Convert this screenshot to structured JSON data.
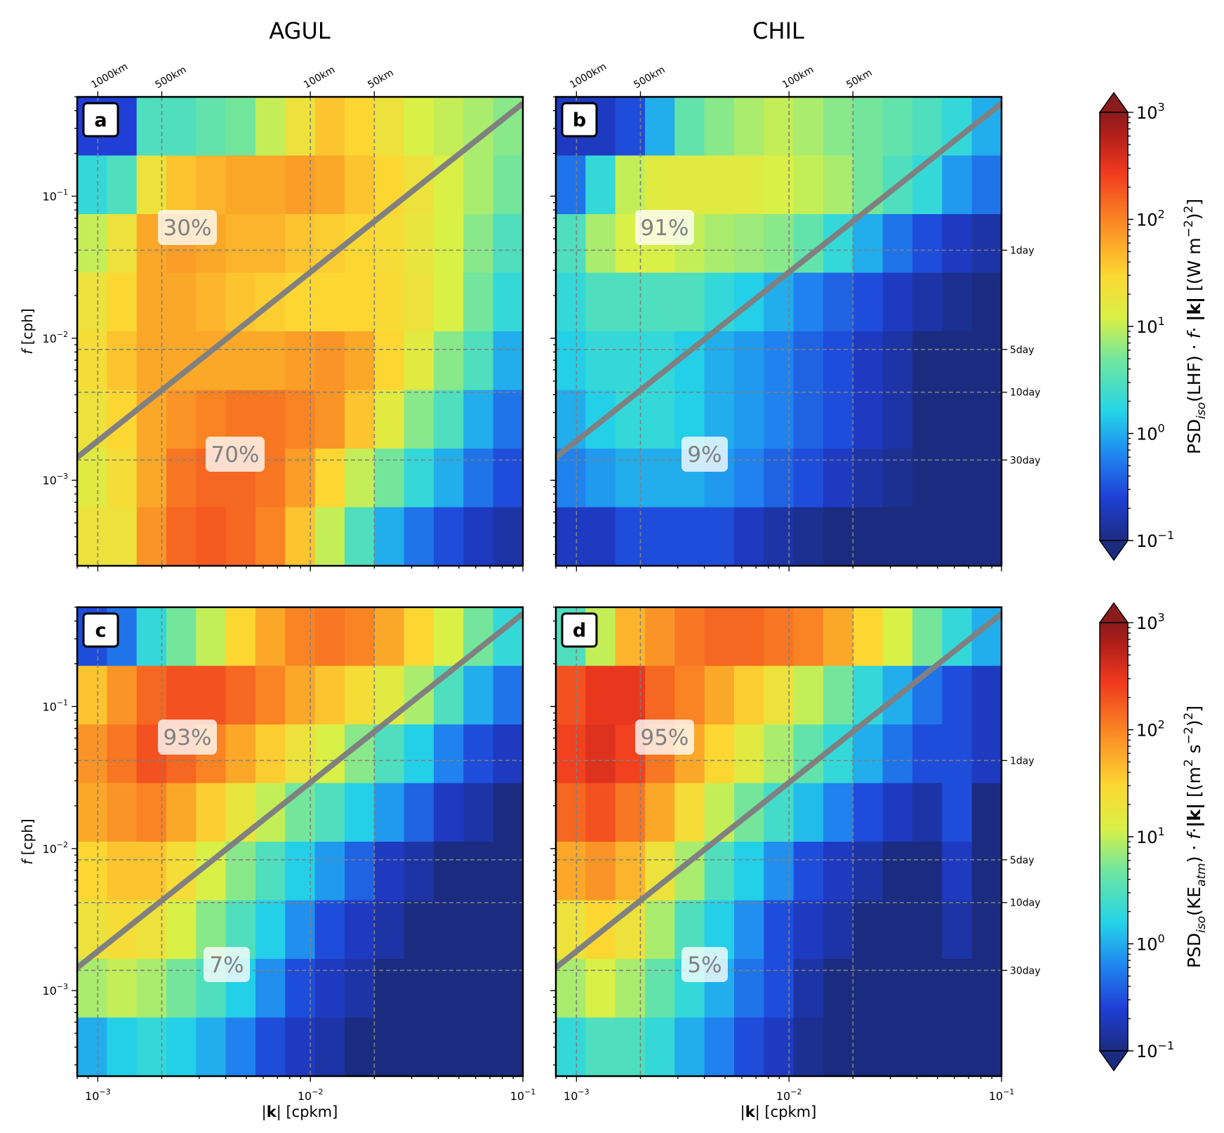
{
  "columns": [
    "AGUL",
    "CHIL"
  ],
  "chart_data": [
    {
      "type": "heatmap",
      "panel": "a",
      "region": "AGUL",
      "field": "LHF",
      "xlabel": "|k| [cpkm]",
      "ylabel": "f [cph]",
      "x_scale": "log",
      "xlim": [
        0.0008,
        0.1
      ],
      "y_scale": "log",
      "ylim": [
        0.00025,
        0.5
      ],
      "percent_above_line": "30%",
      "percent_below_line": "70%",
      "grid": [
        [
          0.25,
          0.25,
          3,
          3,
          4,
          5,
          10,
          20,
          40,
          30,
          20,
          12,
          10,
          8,
          6
        ],
        [
          2,
          3,
          20,
          40,
          50,
          60,
          60,
          70,
          60,
          40,
          30,
          20,
          12,
          8,
          5
        ],
        [
          10,
          20,
          60,
          70,
          60,
          50,
          50,
          40,
          35,
          30,
          25,
          18,
          12,
          6,
          3
        ],
        [
          20,
          30,
          60,
          60,
          50,
          40,
          35,
          30,
          30,
          30,
          28,
          20,
          12,
          5,
          2
        ],
        [
          25,
          40,
          60,
          60,
          60,
          60,
          60,
          70,
          80,
          60,
          30,
          15,
          6,
          3,
          1
        ],
        [
          20,
          30,
          60,
          80,
          100,
          120,
          120,
          100,
          80,
          40,
          15,
          6,
          3,
          1,
          0.5
        ],
        [
          15,
          25,
          60,
          120,
          150,
          150,
          120,
          70,
          30,
          10,
          5,
          2,
          1,
          0.5,
          0.3
        ],
        [
          20,
          20,
          80,
          150,
          180,
          150,
          100,
          40,
          10,
          3,
          1,
          0.5,
          0.3,
          0.2,
          0.15
        ]
      ]
    },
    {
      "type": "heatmap",
      "panel": "b",
      "region": "CHIL",
      "field": "LHF",
      "xlabel": "|k| [cpkm]",
      "ylabel": "f [cph]",
      "x_scale": "log",
      "xlim": [
        0.0008,
        0.1
      ],
      "y_scale": "log",
      "ylim": [
        0.00025,
        0.5
      ],
      "percent_above_line": "91%",
      "percent_below_line": "9%",
      "grid": [
        [
          0.2,
          0.2,
          0.3,
          1,
          4,
          6,
          8,
          10,
          8,
          6,
          5,
          4,
          3,
          2,
          1
        ],
        [
          0.5,
          2,
          10,
          15,
          15,
          15,
          15,
          12,
          10,
          8,
          5,
          3,
          2,
          0.8,
          0.5
        ],
        [
          3,
          8,
          12,
          12,
          10,
          8,
          7,
          6,
          4,
          2,
          1,
          0.5,
          0.3,
          0.2,
          0.15
        ],
        [
          2,
          3,
          3,
          3,
          3,
          2,
          1.5,
          1,
          0.6,
          0.4,
          0.3,
          0.2,
          0.15,
          0.12,
          0.1
        ],
        [
          1.5,
          2,
          2,
          2,
          1.5,
          1,
          0.8,
          0.6,
          0.4,
          0.3,
          0.2,
          0.15,
          0.1,
          0.1,
          0.1
        ],
        [
          1,
          1.5,
          2,
          2,
          1.5,
          1,
          0.8,
          0.6,
          0.4,
          0.3,
          0.2,
          0.15,
          0.1,
          0.1,
          0.1
        ],
        [
          0.6,
          0.8,
          1,
          1,
          1,
          0.8,
          0.6,
          0.4,
          0.3,
          0.2,
          0.15,
          0.12,
          0.1,
          0.1,
          0.1
        ],
        [
          0.2,
          0.2,
          0.3,
          0.3,
          0.3,
          0.3,
          0.2,
          0.15,
          0.12,
          0.1,
          0.1,
          0.1,
          0.1,
          0.1,
          0.1
        ]
      ]
    },
    {
      "type": "heatmap",
      "panel": "c",
      "region": "AGUL",
      "field": "KE_atm",
      "xlabel": "|k| [cpkm]",
      "ylabel": "f [cph]",
      "x_scale": "log",
      "xlim": [
        0.0008,
        0.1
      ],
      "y_scale": "log",
      "ylim": [
        0.00025,
        0.5
      ],
      "percent_above_line": "93%",
      "percent_below_line": "7%",
      "grid": [
        [
          0.3,
          0.5,
          2,
          5,
          10,
          30,
          60,
          100,
          120,
          100,
          60,
          30,
          12,
          5,
          2
        ],
        [
          40,
          80,
          150,
          200,
          200,
          150,
          100,
          60,
          40,
          25,
          15,
          8,
          3,
          1,
          0.5
        ],
        [
          80,
          120,
          200,
          150,
          100,
          60,
          35,
          20,
          12,
          6,
          3,
          1.5,
          0.6,
          0.3,
          0.2
        ],
        [
          60,
          80,
          100,
          60,
          35,
          18,
          10,
          5,
          3,
          1.5,
          0.8,
          0.4,
          0.2,
          0.15,
          0.1
        ],
        [
          30,
          40,
          40,
          25,
          12,
          6,
          3,
          1.5,
          0.8,
          0.4,
          0.2,
          0.15,
          0.1,
          0.1,
          0.1
        ],
        [
          20,
          25,
          20,
          12,
          6,
          3,
          1.5,
          0.7,
          0.3,
          0.2,
          0.15,
          0.1,
          0.1,
          0.1,
          0.1
        ],
        [
          8,
          10,
          8,
          5,
          3,
          1.5,
          0.7,
          0.3,
          0.2,
          0.15,
          0.1,
          0.1,
          0.1,
          0.1,
          0.1
        ],
        [
          1,
          1.5,
          2,
          1.5,
          1,
          0.6,
          0.3,
          0.2,
          0.15,
          0.1,
          0.1,
          0.1,
          0.1,
          0.1,
          0.1
        ]
      ]
    },
    {
      "type": "heatmap",
      "panel": "d",
      "region": "CHIL",
      "field": "KE_atm",
      "xlabel": "|k| [cpkm]",
      "ylabel": "f [cph]",
      "x_scale": "log",
      "xlim": [
        0.0008,
        0.1
      ],
      "y_scale": "log",
      "ylim": [
        0.00025,
        0.5
      ],
      "percent_above_line": "95%",
      "percent_below_line": "5%",
      "grid": [
        [
          3,
          10,
          50,
          80,
          120,
          150,
          150,
          120,
          100,
          60,
          30,
          12,
          5,
          2,
          1
        ],
        [
          200,
          300,
          300,
          150,
          100,
          60,
          35,
          20,
          10,
          5,
          2,
          1,
          0.5,
          0.3,
          0.2
        ],
        [
          250,
          350,
          250,
          120,
          60,
          30,
          15,
          8,
          4,
          2,
          1,
          0.5,
          0.3,
          0.3,
          0.2
        ],
        [
          150,
          200,
          120,
          60,
          25,
          10,
          5,
          2.5,
          1.2,
          0.6,
          0.3,
          0.2,
          0.15,
          0.3,
          0.1
        ],
        [
          60,
          80,
          50,
          20,
          8,
          3,
          1.5,
          0.7,
          0.3,
          0.2,
          0.15,
          0.1,
          0.1,
          0.2,
          0.1
        ],
        [
          20,
          30,
          20,
          8,
          3,
          1.5,
          0.7,
          0.3,
          0.2,
          0.15,
          0.1,
          0.1,
          0.1,
          0.15,
          0.1
        ],
        [
          8,
          12,
          8,
          4,
          2,
          1,
          0.5,
          0.3,
          0.15,
          0.1,
          0.1,
          0.1,
          0.1,
          0.1,
          0.1
        ],
        [
          2,
          3,
          3,
          2,
          1,
          0.6,
          0.3,
          0.2,
          0.12,
          0.1,
          0.1,
          0.1,
          0.1,
          0.1,
          0.1
        ]
      ]
    }
  ],
  "panel_letters": [
    "a",
    "b",
    "c",
    "d"
  ],
  "x_ticks": [
    {
      "value": 0.001,
      "base": "10",
      "exp": "−3"
    },
    {
      "value": 0.01,
      "base": "10",
      "exp": "−2"
    },
    {
      "value": 0.1,
      "base": "10",
      "exp": "−1"
    }
  ],
  "y_ticks": [
    {
      "value": 0.1,
      "base": "10",
      "exp": "−1"
    },
    {
      "value": 0.01,
      "base": "10",
      "exp": "−2"
    },
    {
      "value": 0.001,
      "base": "10",
      "exp": "−3"
    }
  ],
  "wavelength_ticks": [
    {
      "k": 0.001,
      "label": "1000km"
    },
    {
      "k": 0.002,
      "label": "500km"
    },
    {
      "k": 0.01,
      "label": "100km"
    },
    {
      "k": 0.02,
      "label": "50km"
    }
  ],
  "period_ticks": [
    {
      "f": 0.0416667,
      "label": "1day"
    },
    {
      "f": 0.00833333,
      "label": "5day"
    },
    {
      "f": 0.00416667,
      "label": "10day"
    },
    {
      "f": 0.00138889,
      "label": "30day"
    }
  ],
  "xlabel_parts": [
    "|",
    "k",
    "| [cpkm]"
  ],
  "ylabel_parts": [
    "f",
    " [cph]"
  ],
  "diagonal_line": {
    "color": "#808080",
    "points": [
      [
        0.0008,
        0.00145
      ],
      [
        0.1,
        0.45
      ]
    ]
  },
  "colorbars": [
    {
      "range": [
        0.1,
        1000
      ],
      "ticks": [
        {
          "value": 1000,
          "base": "10",
          "exp": "3"
        },
        {
          "value": 100,
          "base": "10",
          "exp": "2"
        },
        {
          "value": 10,
          "base": "10",
          "exp": "1"
        },
        {
          "value": 1,
          "base": "10",
          "exp": "0"
        },
        {
          "value": 0.1,
          "base": "10",
          "exp": "−1"
        }
      ],
      "label": {
        "psd": "PSD",
        "iso": "iso",
        "var_pre": "(LHF) ·",
        "f": "f",
        "dot": "·",
        "k": "|k|",
        "units_pre": "[(W m",
        "units_exp": "−2",
        "units_post": ")",
        "units_sq": "2",
        "units_close": "]"
      }
    },
    {
      "range": [
        0.1,
        1000
      ],
      "ticks": [
        {
          "value": 1000,
          "base": "10",
          "exp": "3"
        },
        {
          "value": 100,
          "base": "10",
          "exp": "2"
        },
        {
          "value": 10,
          "base": "10",
          "exp": "1"
        },
        {
          "value": 1,
          "base": "10",
          "exp": "0"
        },
        {
          "value": 0.1,
          "base": "10",
          "exp": "−1"
        }
      ],
      "label": {
        "psd": "PSD",
        "iso": "iso",
        "var_pre": "(KE",
        "var_sub": "atm",
        "var_post": ") ·",
        "f": "f",
        "dot": "·",
        "k": "|k|",
        "units_pre": "[(m",
        "units_exp1": "2",
        "units_mid": " s",
        "units_exp": "−2",
        "units_post": ")",
        "units_sq": "2",
        "units_close": "]"
      }
    }
  ],
  "colormap": {
    "stops": [
      "#1b2c80",
      "#1f3fd6",
      "#1f86f0",
      "#24d4e8",
      "#6fe6a0",
      "#d9f046",
      "#fcd732",
      "#fb8b24",
      "#f03a1e",
      "#b01e1a",
      "#8a1c1c"
    ]
  }
}
